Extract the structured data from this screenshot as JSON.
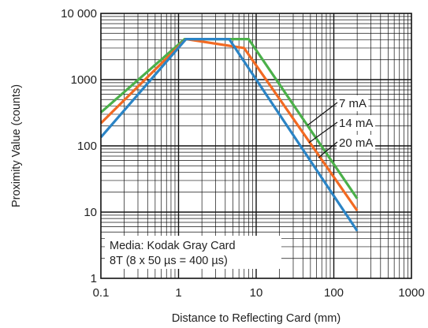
{
  "chart_data": {
    "type": "line",
    "title": "",
    "xlabel": "Distance to Reflecting Card (mm)",
    "ylabel": "Proximity Value (counts)",
    "x_scale": "log",
    "y_scale": "log",
    "xlim": [
      0.1,
      1000
    ],
    "ylim": [
      1,
      10000
    ],
    "grid": true,
    "x_tick_labels": [
      "0.1",
      "1",
      "10",
      "100",
      "1000"
    ],
    "y_tick_labels": [
      "1",
      "10",
      "100",
      "1000",
      "10 000"
    ],
    "series": [
      {
        "name": "7 mA",
        "color": "#4bb04a",
        "x": [
          0.1,
          1.2,
          8,
          200
        ],
        "y": [
          320,
          4095,
          4095,
          16
        ]
      },
      {
        "name": "14 mA",
        "color": "#f26a22",
        "x": [
          0.1,
          1.25,
          7,
          200
        ],
        "y": [
          220,
          4095,
          3000,
          10.5
        ]
      },
      {
        "name": "20 mA",
        "color": "#2b84c5",
        "x": [
          0.1,
          1.25,
          4.5,
          200
        ],
        "y": [
          135,
          4095,
          4095,
          5.2
        ]
      }
    ],
    "annotations": [
      "Media: Kodak Gray Card",
      "8T (8 x 50 µs = 400 µs)"
    ]
  }
}
